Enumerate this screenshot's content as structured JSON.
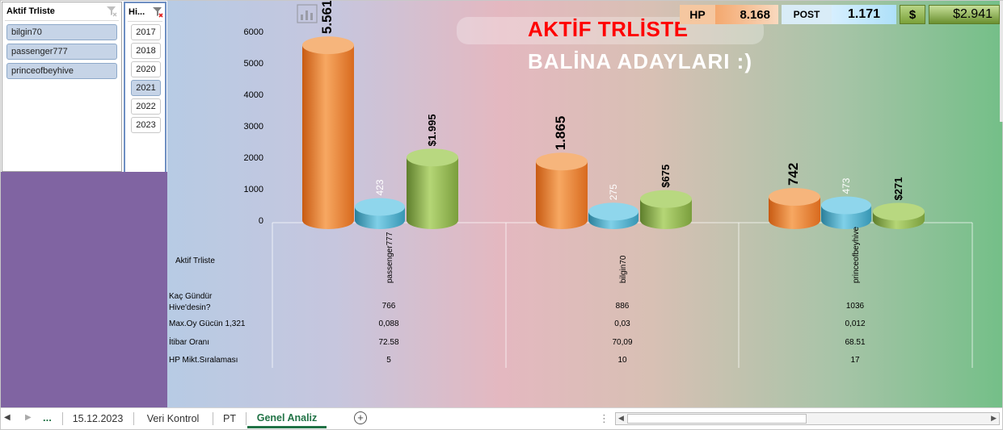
{
  "slicer_users": {
    "title": "Aktif Trliste",
    "items": [
      "bilgin70",
      "passenger777",
      "princeofbeyhive"
    ]
  },
  "slicer_years": {
    "title": "Hi...",
    "items": [
      "2017",
      "2018",
      "2020",
      "2021",
      "2022",
      "2023"
    ],
    "selected": "2021"
  },
  "titles": {
    "line1": "AKTİF TRLİSTE",
    "line2": "BALİNA ADAYLARI :)"
  },
  "kpis": {
    "hp_label": "HP",
    "hp_value": "8.168",
    "post_label": "POST",
    "post_value": "1.171",
    "dollar_label": "$",
    "dollar_value": "$2.941"
  },
  "colors": {
    "hp": "#ed7d31",
    "post": "#4bacc6",
    "dollar": "#9bbb59",
    "title_red": "#ff0000",
    "active_tab": "#217346"
  },
  "chart_data": {
    "type": "bar",
    "categories": [
      "passenger777",
      "bilgin70",
      "princeofbeyhive"
    ],
    "series": [
      {
        "values": [
          5561,
          1865,
          742
        ],
        "labels": [
          "5.561",
          "1.865",
          "742"
        ]
      },
      {
        "values": [
          423,
          275,
          473
        ],
        "labels": [
          "423",
          "275",
          "473"
        ]
      },
      {
        "values": [
          1995,
          675,
          271
        ],
        "labels": [
          "$1.995",
          "$675",
          "$271"
        ]
      }
    ],
    "ylim": [
      0,
      6000
    ],
    "yticks": [
      "0",
      "1000",
      "2000",
      "3000",
      "4000",
      "5000",
      "6000"
    ],
    "grid": false
  },
  "table": {
    "header": "Aktif Trliste",
    "rows": [
      {
        "label": "Kaç Gündür Hive'desin?",
        "values": [
          "766",
          "886",
          "1036"
        ]
      },
      {
        "label": "Max.Oy Gücün  1,321",
        "values": [
          "0,088",
          "0,03",
          "0,012"
        ]
      },
      {
        "label": "İtibar Oranı",
        "values": [
          "72.58",
          "70,09",
          "68.51"
        ]
      },
      {
        "label": "HP Mikt.Sıralaması",
        "values": [
          "5",
          "10",
          "17"
        ]
      }
    ]
  },
  "sheet_tabs": [
    "...",
    "15.12.2023",
    "Veri Kontrol",
    "PT",
    "Genel Analiz"
  ],
  "active_tab": "Genel Analiz"
}
